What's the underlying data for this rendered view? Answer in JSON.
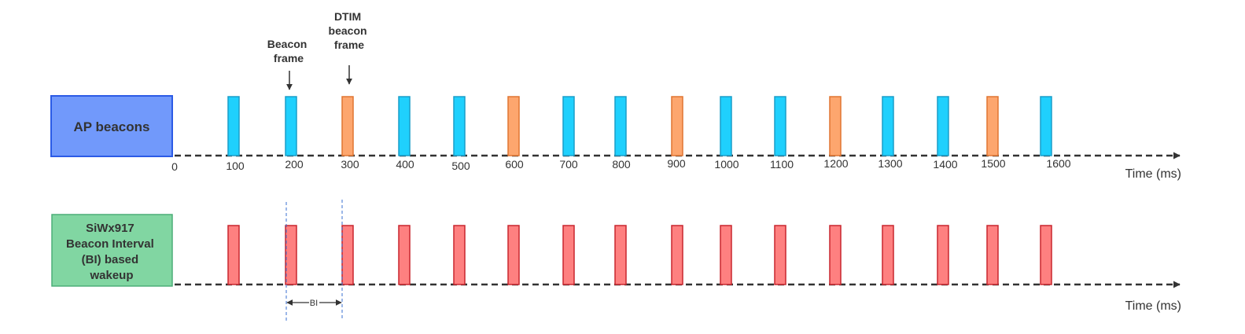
{
  "ap_label": "AP beacons",
  "sta_label_lines": [
    "SiWx917",
    "Beacon Interval",
    "(BI) based",
    "wakeup"
  ],
  "callouts": {
    "beacon_lines": [
      "Beacon",
      "frame"
    ],
    "dtim_lines": [
      "DTIM",
      "beacon",
      "frame"
    ]
  },
  "axis_title": "Time (ms)",
  "bi_label": "BI",
  "ticks": [
    "0",
    "100",
    "200",
    "300",
    "400",
    "500",
    "600",
    "700",
    "800",
    "900",
    "1000",
    "1100",
    "1200",
    "1300",
    "1400",
    "1500",
    "1600"
  ],
  "beacon_kinds": [
    "beacon",
    "beacon",
    "dtim",
    "beacon",
    "beacon",
    "dtim",
    "beacon",
    "beacon",
    "dtim",
    "beacon",
    "beacon",
    "dtim",
    "beacon",
    "beacon",
    "dtim",
    "beacon"
  ],
  "colors": {
    "ap_box_fill": "#7199fb",
    "ap_box_stroke": "#2b5be6",
    "sta_box_fill": "#81d6a2",
    "sta_box_stroke": "#4cae78",
    "beacon_fill": "#1fd0fd",
    "beacon_stroke": "#1a9dc9",
    "dtim_fill": "#fda66e",
    "dtim_stroke": "#e07531",
    "wake_fill": "#fe8080",
    "wake_stroke": "#c8262e",
    "axis": "#333333",
    "guide": "#3a6fd0"
  }
}
